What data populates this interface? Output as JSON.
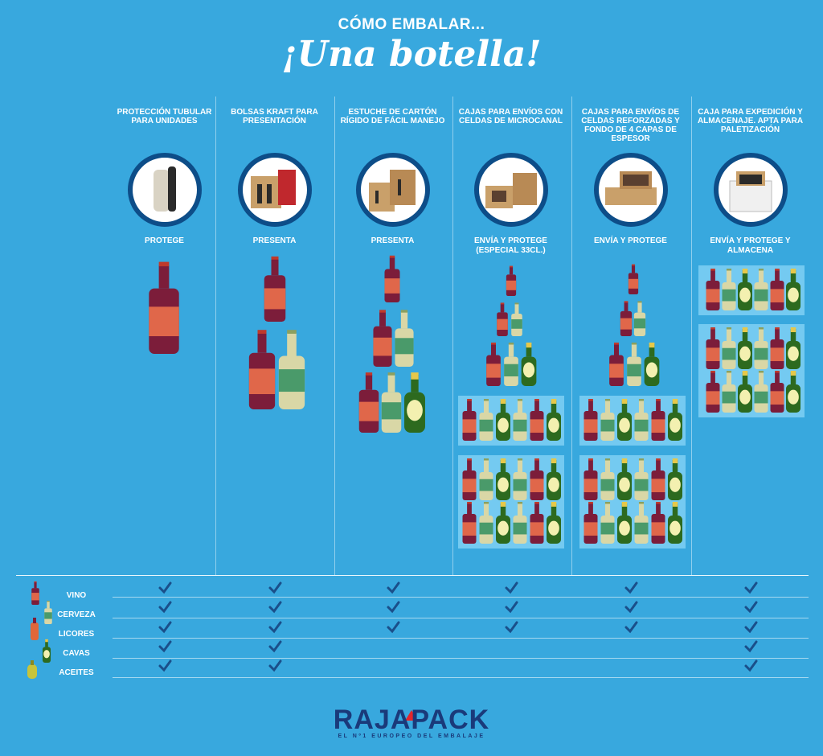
{
  "header": {
    "kicker": "CÓMO EMBALAR...",
    "title": "¡Una botella!"
  },
  "columns": [
    {
      "title": "PROTECCIÓN TUBULAR PARA UNIDADES",
      "verb": "PROTEGE",
      "image_icon": "tubular-sleeve-icon"
    },
    {
      "title": "BOLSAS KRAFT PARA PRESENTACIÓN",
      "verb": "PRESENTA",
      "image_icon": "kraft-bag-icon"
    },
    {
      "title": "ESTUCHE DE CARTÓN RÍGIDO DE FÁCIL MANEJO",
      "verb": "PRESENTA",
      "image_icon": "cardboard-case-icon"
    },
    {
      "title": "CAJAS PARA ENVÍOS CON CELDAS DE MICROCANAL",
      "verb": "ENVÍA Y PROTEGE (ESPECIAL 33CL.)",
      "image_icon": "microflute-box-icon"
    },
    {
      "title": "CAJAS PARA ENVÍOS DE CELDAS REFORZADAS Y FONDO DE 4 CAPAS DE ESPESOR",
      "verb": "ENVÍA Y PROTEGE",
      "image_icon": "reinforced-box-icon"
    },
    {
      "title": "CAJA PARA EXPEDICIÓN Y ALMACENAJE. APTA PARA PALETIZACIÓN",
      "verb": "ENVÍA Y PROTEGE Y ALMACENA",
      "image_icon": "storage-box-icon"
    }
  ],
  "legend": [
    {
      "label": "VINO",
      "icon": "wine-bottle-icon"
    },
    {
      "label": "CERVEZA",
      "icon": "beer-bottle-icon"
    },
    {
      "label": "LICORES",
      "icon": "liquor-bottle-icon"
    },
    {
      "label": "CAVAS",
      "icon": "cava-bottle-icon"
    },
    {
      "label": "ACEITES",
      "icon": "oil-bottle-icon"
    }
  ],
  "checks": [
    [
      true,
      true,
      true,
      true,
      true
    ],
    [
      true,
      true,
      true,
      true,
      true
    ],
    [
      true,
      true,
      true,
      false,
      false
    ],
    [
      true,
      true,
      true,
      false,
      false
    ],
    [
      true,
      true,
      true,
      false,
      false
    ],
    [
      true,
      true,
      true,
      true,
      true
    ]
  ],
  "colors": {
    "background": "#38a8de",
    "wine": "#7c1d3a",
    "wine_label": "#e0674a",
    "beer": "#d9d7a6",
    "beer_label": "#4a9a6a",
    "cava": "#2d6a1f",
    "cava_label": "#f3f0b0",
    "check": "#1a4f8a",
    "logo": "#1a3a7a"
  },
  "footer": {
    "logo": "RAJAPACK",
    "tagline": "EL Nº1 EUROPEO DEL EMBALAJE"
  }
}
